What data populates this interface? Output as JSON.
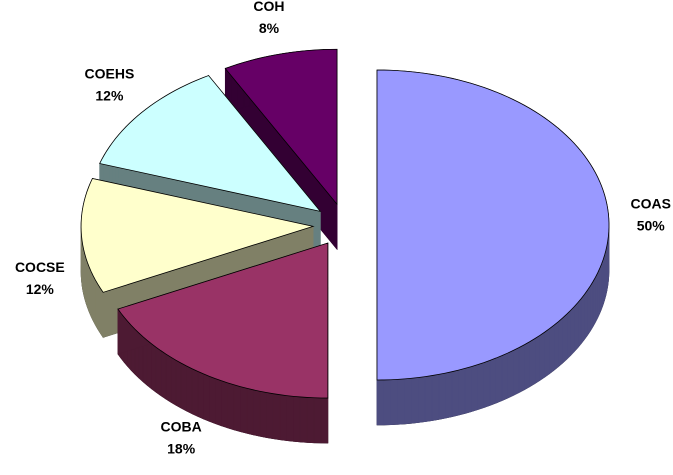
{
  "chart_data": {
    "type": "pie",
    "categories": [
      "COAS",
      "COBA",
      "COCSE",
      "COEHS",
      "COH"
    ],
    "values": [
      50,
      18,
      12,
      12,
      8
    ],
    "value_labels": [
      "50%",
      "18%",
      "12%",
      "12%",
      "8%"
    ],
    "colors": [
      "#9999ff",
      "#993366",
      "#ffffcc",
      "#ccffff",
      "#660066"
    ]
  }
}
